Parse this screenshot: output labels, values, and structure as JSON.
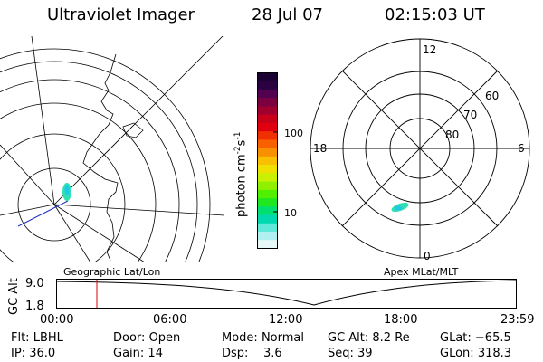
{
  "header": {
    "title": "Ultraviolet Imager",
    "date": "28 Jul 07",
    "time": "02:15:03 UT"
  },
  "colorbar": {
    "unit": "photon cm",
    "unit_sup1": "-2",
    "unit_mid": "s",
    "unit_sup2": "-1",
    "ticks": [
      "100",
      "10"
    ],
    "colors": [
      "#1a0033",
      "#2a0040",
      "#520050",
      "#7a0040",
      "#a00030",
      "#c8001a",
      "#e00010",
      "#f03000",
      "#f86000",
      "#f89000",
      "#f8c000",
      "#f0e000",
      "#c8f000",
      "#90f000",
      "#50f000",
      "#20e820",
      "#00e070",
      "#00d8b0",
      "#60e8d8",
      "#b0f0f0",
      "#e8f8f8"
    ]
  },
  "polar": {
    "lat_labels": [
      "60",
      "70",
      "80"
    ],
    "mlt_labels": {
      "top": "12",
      "left": "18",
      "right": "6",
      "bottom": "0"
    }
  },
  "map_labels": {
    "left": "Geographic Lat/Lon",
    "right": "Apex MLat/MLT"
  },
  "timeline": {
    "ylabel": "GC Alt",
    "yticks": [
      "9.0",
      "1.8"
    ],
    "xticks": [
      "00:00",
      "06:00",
      "12:00",
      "18:00",
      "23:59"
    ]
  },
  "info": {
    "flt_label": "Flt:",
    "flt_value": "LBHL",
    "ip_label": "IP:",
    "ip_value": "36.0",
    "door_label": "Door:",
    "door_value": "Open",
    "gain_label": "Gain:",
    "gain_value": "14",
    "mode_label": "Mode:",
    "mode_value": "Normal",
    "dsp_label": "Dsp:",
    "dsp_value": "3.6",
    "gcalt_label": "GC Alt:",
    "gcalt_value": "8.2 Re",
    "seq_label": "Seq:",
    "seq_value": "39",
    "glat_label": "GLat:",
    "glat_value": "−65.5",
    "glon_label": "GLon:",
    "glon_value": "318.3"
  }
}
